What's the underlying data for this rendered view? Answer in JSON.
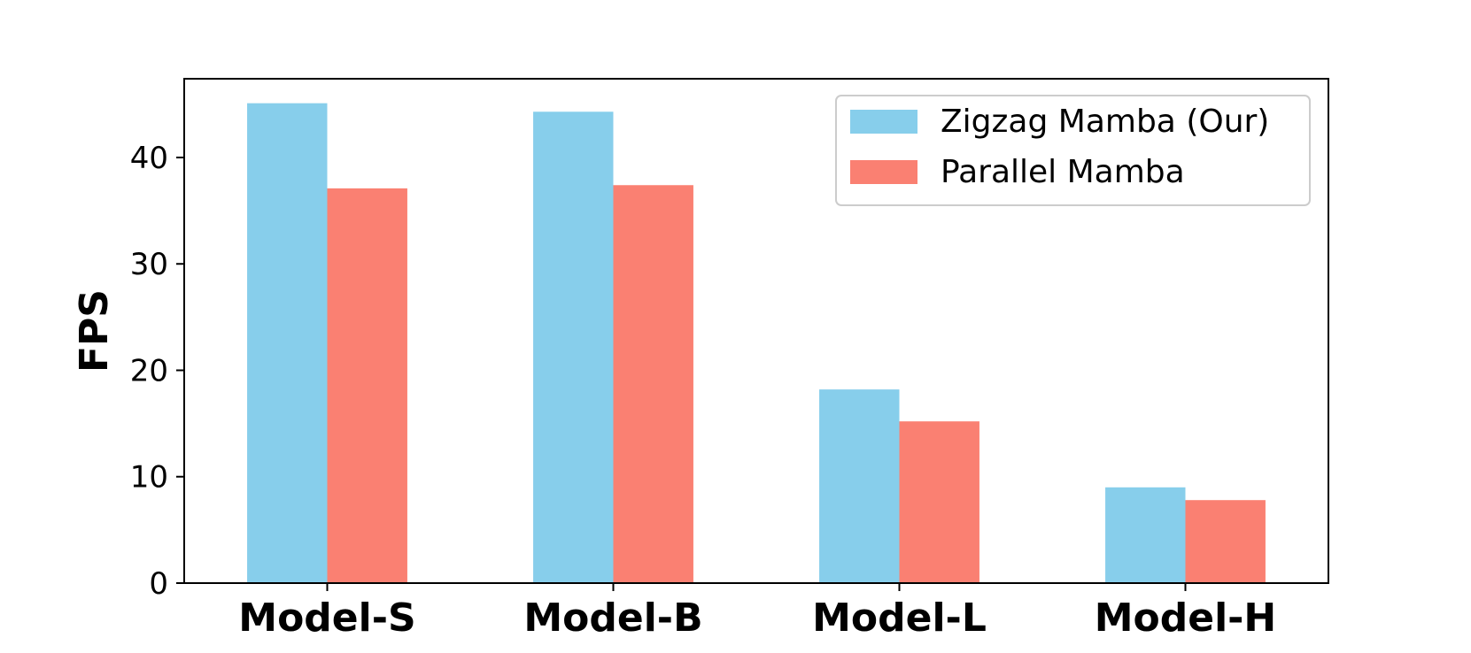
{
  "chart_data": {
    "type": "bar",
    "categories": [
      "Model-S",
      "Model-B",
      "Model-L",
      "Model-H"
    ],
    "series": [
      {
        "name": "Zigzag Mamba (Our)",
        "values": [
          45.1,
          44.3,
          18.2,
          9.0
        ],
        "color": "#87ceeb"
      },
      {
        "name": "Parallel Mamba",
        "values": [
          37.1,
          37.4,
          15.2,
          7.8
        ],
        "color": "#fa8072"
      }
    ],
    "title": "",
    "xlabel": "",
    "ylabel": "FPS",
    "ylim": [
      0,
      47.4
    ],
    "yticks": [
      "0",
      "10",
      "20",
      "30",
      "40"
    ],
    "grid": false,
    "legend_position": "top-right"
  }
}
